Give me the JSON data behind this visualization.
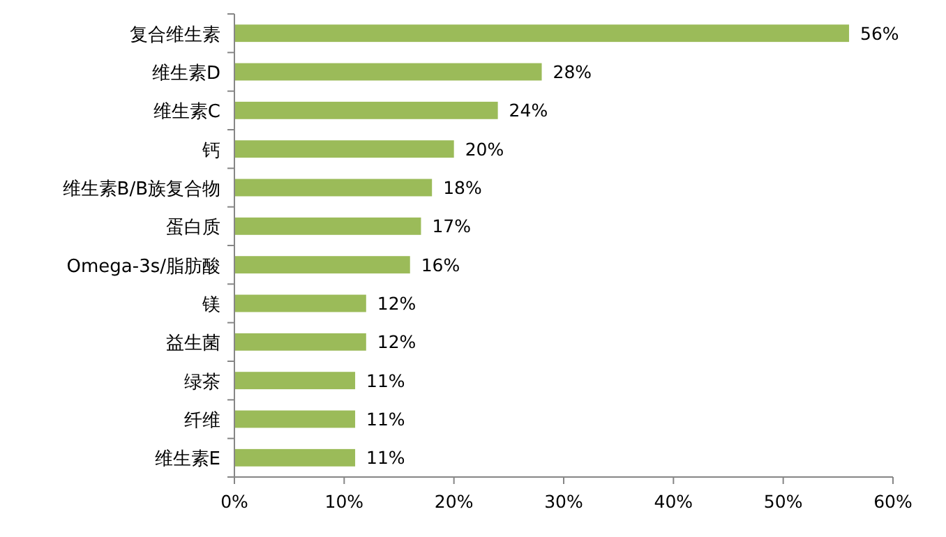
{
  "chart_data": {
    "type": "bar",
    "orientation": "horizontal",
    "categories": [
      "复合维生素",
      "维生素D",
      "维生素C",
      "钙",
      "维生素B/B族复合物",
      "蛋白质",
      "Omega-3s/脂肪酸",
      "镁",
      "益生菌",
      "绿茶",
      "纤维",
      "维生素E"
    ],
    "values": [
      56,
      28,
      24,
      20,
      18,
      17,
      16,
      12,
      12,
      11,
      11,
      11
    ],
    "value_labels": [
      "56%",
      "28%",
      "24%",
      "20%",
      "18%",
      "17%",
      "16%",
      "12%",
      "12%",
      "11%",
      "11%",
      "11%"
    ],
    "color": "#9bbb59",
    "xlim": [
      0,
      60
    ],
    "xticks": [
      {
        "value": 0,
        "label": "0%"
      },
      {
        "value": 10,
        "label": "10%"
      },
      {
        "value": 20,
        "label": "20%"
      },
      {
        "value": 30,
        "label": "30%"
      },
      {
        "value": 40,
        "label": "40%"
      },
      {
        "value": 50,
        "label": "50%"
      },
      {
        "value": 60,
        "label": "60%"
      }
    ],
    "grid": false
  }
}
